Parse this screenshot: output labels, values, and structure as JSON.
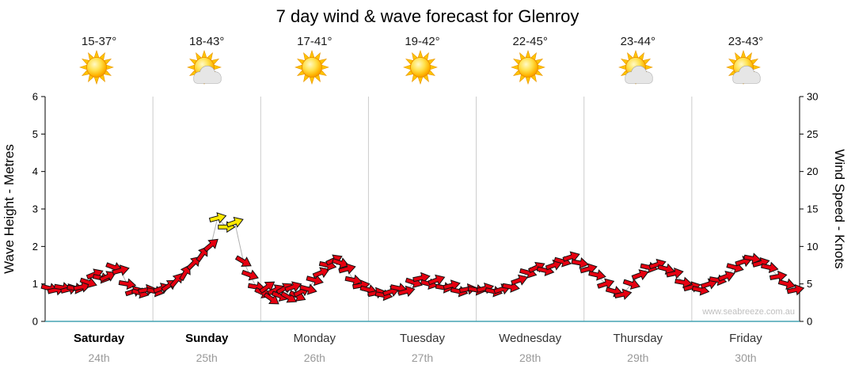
{
  "title": "7 day wind & wave forecast for Glenroy",
  "header": {
    "days": [
      {
        "temp": "15-37°",
        "icon": "sun"
      },
      {
        "temp": "18-43°",
        "icon": "sun-cloud"
      },
      {
        "temp": "17-41°",
        "icon": "sun"
      },
      {
        "temp": "19-42°",
        "icon": "sun"
      },
      {
        "temp": "22-45°",
        "icon": "sun"
      },
      {
        "temp": "23-44°",
        "icon": "sun-cloud"
      },
      {
        "temp": "23-43°",
        "icon": "sun-cloud"
      }
    ]
  },
  "chart_data": {
    "type": "scatter",
    "title": "7 day wind & wave forecast for Glenroy",
    "ylabel_left": "Wave Height - Metres",
    "ylabel_right": "Wind Speed - Knots",
    "ylim_left": [
      0,
      6
    ],
    "ylim_right": [
      0,
      30
    ],
    "yticks_left": [
      0,
      1,
      2,
      3,
      4,
      5,
      6
    ],
    "yticks_right": [
      0,
      5,
      10,
      15,
      20,
      25,
      30
    ],
    "grid": "vertical lines at day boundaries",
    "legend": "none",
    "watermark": "www.seabreeze.com.au",
    "days": [
      {
        "name": "Saturday",
        "date": "24th",
        "bold": true
      },
      {
        "name": "Sunday",
        "date": "25th",
        "bold": true
      },
      {
        "name": "Monday",
        "date": "26th",
        "bold": false
      },
      {
        "name": "Tuesday",
        "date": "27th",
        "bold": false
      },
      {
        "name": "Wednesday",
        "date": "28th",
        "bold": false
      },
      {
        "name": "Thursday",
        "date": "29th",
        "bold": false
      },
      {
        "name": "Friday",
        "date": "30th",
        "bold": false
      }
    ],
    "colors": {
      "arrow_moderate": "#e60010",
      "arrow_strong": "#ffe800",
      "grid": "#cccccc",
      "baseline": "#45a3b4",
      "axis": "#000000",
      "trace": "#b0b0b0"
    },
    "arrow_format": [
      "t_days_from_start",
      "wind_speed_knots",
      "direction_deg_ccw_from_east",
      "optional_y_for_yellow"
    ],
    "wave_height_metres_equals": "knots / 5",
    "arrows": [
      [
        0.04,
        4.4,
        -15
      ],
      [
        0.1,
        4.2,
        12
      ],
      [
        0.16,
        4.5,
        -10
      ],
      [
        0.22,
        4.3,
        15
      ],
      [
        0.28,
        4.4,
        -8
      ],
      [
        0.34,
        4.6,
        12
      ],
      [
        0.4,
        5.2,
        -18
      ],
      [
        0.46,
        6.3,
        22
      ],
      [
        0.52,
        5.8,
        -12
      ],
      [
        0.58,
        6.0,
        25
      ],
      [
        0.64,
        7.2,
        -20
      ],
      [
        0.7,
        6.8,
        15
      ],
      [
        0.76,
        5.0,
        -10
      ],
      [
        0.82,
        4.0,
        18
      ],
      [
        0.88,
        3.8,
        -15
      ],
      [
        0.94,
        4.2,
        10
      ],
      [
        1.02,
        4.0,
        -12
      ],
      [
        1.08,
        4.4,
        20
      ],
      [
        1.15,
        4.8,
        35
      ],
      [
        1.22,
        5.5,
        50
      ],
      [
        1.3,
        6.5,
        60
      ],
      [
        1.38,
        7.8,
        45
      ],
      [
        1.46,
        9.0,
        55
      ],
      [
        1.54,
        10.2,
        40
      ],
      [
        1.6,
        13.8,
        15,
        "y"
      ],
      [
        1.68,
        12.6,
        0,
        "y"
      ],
      [
        1.76,
        13.2,
        20,
        "y"
      ],
      [
        1.84,
        8.0,
        -30
      ],
      [
        1.9,
        6.2,
        -20
      ],
      [
        1.96,
        4.6,
        -10
      ],
      [
        2.02,
        3.8,
        -25
      ],
      [
        2.06,
        4.6,
        35
      ],
      [
        2.1,
        3.0,
        -35
      ],
      [
        2.14,
        4.2,
        25
      ],
      [
        2.18,
        3.4,
        -20
      ],
      [
        2.22,
        4.4,
        30
      ],
      [
        2.26,
        3.2,
        -30
      ],
      [
        2.3,
        4.6,
        20
      ],
      [
        2.34,
        3.4,
        -25
      ],
      [
        2.38,
        4.0,
        28
      ],
      [
        2.44,
        4.3,
        -15
      ],
      [
        2.5,
        5.5,
        -15
      ],
      [
        2.56,
        6.5,
        22
      ],
      [
        2.62,
        7.5,
        -12
      ],
      [
        2.68,
        8.2,
        25
      ],
      [
        2.74,
        7.8,
        -18
      ],
      [
        2.8,
        7.0,
        15
      ],
      [
        2.86,
        5.5,
        -12
      ],
      [
        2.93,
        4.8,
        10
      ],
      [
        3.0,
        4.2,
        -15
      ],
      [
        3.07,
        3.8,
        12
      ],
      [
        3.14,
        3.5,
        -10
      ],
      [
        3.21,
        4.0,
        18
      ],
      [
        3.28,
        4.4,
        -12
      ],
      [
        3.35,
        4.0,
        15
      ],
      [
        3.42,
        5.2,
        -18
      ],
      [
        3.49,
        5.8,
        12
      ],
      [
        3.56,
        5.0,
        -15
      ],
      [
        3.63,
        5.5,
        20
      ],
      [
        3.7,
        4.5,
        -10
      ],
      [
        3.77,
        4.8,
        15
      ],
      [
        3.84,
        4.0,
        -12
      ],
      [
        3.92,
        4.3,
        10
      ],
      [
        4.0,
        4.2,
        -10
      ],
      [
        4.08,
        4.4,
        15
      ],
      [
        4.16,
        4.0,
        -12
      ],
      [
        4.24,
        4.3,
        18
      ],
      [
        4.32,
        4.6,
        -10
      ],
      [
        4.4,
        5.5,
        20
      ],
      [
        4.48,
        6.5,
        -15
      ],
      [
        4.56,
        7.2,
        25
      ],
      [
        4.64,
        6.8,
        -12
      ],
      [
        4.72,
        7.5,
        20
      ],
      [
        4.8,
        8.0,
        -15
      ],
      [
        4.88,
        8.6,
        18
      ],
      [
        4.96,
        7.8,
        -10
      ],
      [
        5.04,
        7.0,
        15
      ],
      [
        5.12,
        6.2,
        -12
      ],
      [
        5.2,
        5.0,
        18
      ],
      [
        5.28,
        4.0,
        -15
      ],
      [
        5.36,
        3.6,
        12
      ],
      [
        5.44,
        5.0,
        -18
      ],
      [
        5.52,
        6.2,
        20
      ],
      [
        5.6,
        7.2,
        -12
      ],
      [
        5.68,
        7.6,
        18
      ],
      [
        5.76,
        7.0,
        -15
      ],
      [
        5.84,
        6.4,
        12
      ],
      [
        5.92,
        5.2,
        -10
      ],
      [
        6.0,
        4.6,
        15
      ],
      [
        6.08,
        4.2,
        -12
      ],
      [
        6.16,
        5.0,
        18
      ],
      [
        6.24,
        5.5,
        -10
      ],
      [
        6.32,
        6.0,
        20
      ],
      [
        6.4,
        7.2,
        -15
      ],
      [
        6.48,
        8.0,
        18
      ],
      [
        6.56,
        8.4,
        -10
      ],
      [
        6.64,
        7.8,
        15
      ],
      [
        6.72,
        7.2,
        -12
      ],
      [
        6.8,
        6.0,
        10
      ],
      [
        6.88,
        5.0,
        -15
      ],
      [
        6.96,
        4.2,
        12
      ]
    ]
  }
}
